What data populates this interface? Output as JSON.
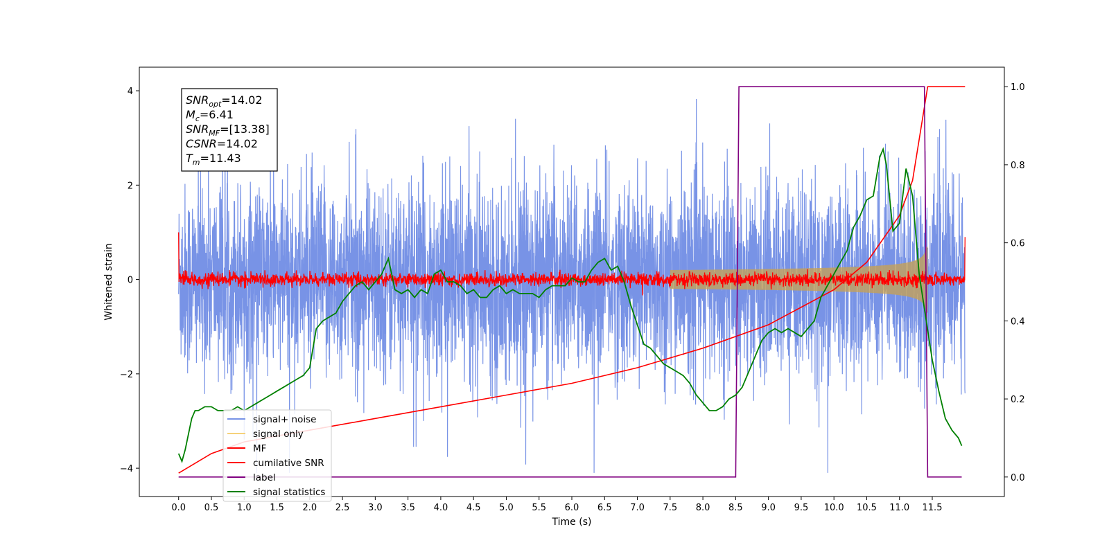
{
  "chart_data": {
    "type": "line",
    "xlabel": "Time (s)",
    "ylabel_left": "Whitened strain",
    "ylabel_right": "",
    "xlim": [
      -0.6,
      12.6
    ],
    "ylim_left": [
      -4.6,
      4.5
    ],
    "ylim_right": [
      -0.05,
      1.05
    ],
    "x_ticks": [
      0.0,
      0.5,
      1.0,
      1.5,
      2.0,
      2.5,
      3.0,
      3.5,
      4.0,
      4.5,
      5.0,
      5.5,
      6.0,
      6.5,
      7.0,
      7.5,
      8.0,
      8.5,
      9.0,
      9.5,
      10.0,
      10.5,
      11.0,
      11.5
    ],
    "x_tick_labels": [
      "0.0",
      "0.5",
      "1.0",
      "1.5",
      "2.0",
      "2.5",
      "3.0",
      "3.5",
      "4.0",
      "4.5",
      "5.0",
      "5.5",
      "6.0",
      "6.5",
      "7.0",
      "7.5",
      "8.0",
      "8.5",
      "9.0",
      "9.5",
      "10.0",
      "10.5",
      "11.0",
      "11.5"
    ],
    "y_ticks_left": [
      -4,
      -2,
      0,
      2,
      4
    ],
    "y_tick_labels_left": [
      "−4",
      "−2",
      "0",
      "2",
      "4"
    ],
    "y_ticks_right": [
      0.0,
      0.2,
      0.4,
      0.6,
      0.8,
      1.0
    ],
    "y_tick_labels_right": [
      "0.0",
      "0.2",
      "0.4",
      "0.6",
      "0.8",
      "1.0"
    ],
    "grid": false,
    "legend_position": "lower-left",
    "annotation": {
      "lines": [
        {
          "base": "SNR",
          "sub": "opt",
          "value": "=14.02"
        },
        {
          "base": "M",
          "sub": "c",
          "value": "=6.41"
        },
        {
          "base": "SNR",
          "sub": "MF",
          "value": "=[13.38]"
        },
        {
          "base": "CSNR",
          "sub": "",
          "value": "=14.02"
        },
        {
          "base": "T",
          "sub": "m",
          "value": "=11.43"
        }
      ]
    },
    "series": [
      {
        "name": "signal+ noise",
        "axis": "left",
        "color": "#7893e6",
        "kind": "noise",
        "x_range": [
          0.0,
          12.0
        ],
        "amplitude_typical": 1.6,
        "amplitude_peak": 4.1
      },
      {
        "name": "signal only",
        "axis": "left",
        "color": "#f5d27a",
        "kind": "chirp",
        "x_start": 7.5,
        "merger_time": 11.43,
        "amplitude_at_merger": 0.75
      },
      {
        "name": "MF",
        "axis": "left",
        "color": "#ff0000",
        "kind": "noise",
        "x_range": [
          0.0,
          12.0
        ],
        "amplitude_typical": 0.1
      },
      {
        "name": "cumilative SNR",
        "axis": "right",
        "color": "#ff0000",
        "x": [
          0.0,
          0.5,
          1.0,
          2.0,
          3.0,
          4.0,
          5.0,
          6.0,
          7.0,
          8.0,
          9.0,
          10.0,
          10.5,
          11.0,
          11.2,
          11.43,
          11.5,
          12.0
        ],
        "y": [
          0.01,
          0.06,
          0.09,
          0.12,
          0.15,
          0.18,
          0.21,
          0.24,
          0.28,
          0.33,
          0.39,
          0.48,
          0.55,
          0.67,
          0.76,
          1.0,
          1.0,
          1.0
        ]
      },
      {
        "name": "label",
        "axis": "right",
        "color": "#800080",
        "x": [
          0.0,
          8.5,
          8.55,
          11.38,
          11.43,
          11.95
        ],
        "y": [
          0.0,
          0.0,
          1.0,
          1.0,
          0.0,
          0.0
        ]
      },
      {
        "name": "signal statistics",
        "axis": "right",
        "color": "#008000",
        "x": [
          0.0,
          0.05,
          0.1,
          0.15,
          0.2,
          0.25,
          0.3,
          0.4,
          0.5,
          0.6,
          0.7,
          0.8,
          0.9,
          1.0,
          1.1,
          1.2,
          1.3,
          1.4,
          1.5,
          1.6,
          1.7,
          1.8,
          1.9,
          2.0,
          2.1,
          2.2,
          2.3,
          2.4,
          2.5,
          2.6,
          2.7,
          2.8,
          2.9,
          3.0,
          3.1,
          3.2,
          3.3,
          3.4,
          3.5,
          3.6,
          3.7,
          3.8,
          3.9,
          4.0,
          4.1,
          4.2,
          4.3,
          4.4,
          4.5,
          4.6,
          4.7,
          4.8,
          4.9,
          5.0,
          5.1,
          5.2,
          5.3,
          5.4,
          5.5,
          5.6,
          5.7,
          5.8,
          5.9,
          6.0,
          6.1,
          6.2,
          6.3,
          6.4,
          6.5,
          6.6,
          6.7,
          6.8,
          6.9,
          7.0,
          7.1,
          7.2,
          7.3,
          7.4,
          7.5,
          7.6,
          7.7,
          7.8,
          7.9,
          8.0,
          8.1,
          8.2,
          8.3,
          8.4,
          8.5,
          8.6,
          8.7,
          8.8,
          8.9,
          9.0,
          9.1,
          9.2,
          9.3,
          9.4,
          9.5,
          9.6,
          9.7,
          9.8,
          9.9,
          10.0,
          10.1,
          10.2,
          10.3,
          10.4,
          10.5,
          10.6,
          10.7,
          10.75,
          10.8,
          10.9,
          11.0,
          11.1,
          11.2,
          11.3,
          11.4,
          11.5,
          11.6,
          11.7,
          11.8,
          11.9,
          11.95
        ],
        "y": [
          0.06,
          0.04,
          0.07,
          0.11,
          0.15,
          0.17,
          0.17,
          0.18,
          0.18,
          0.17,
          0.17,
          0.17,
          0.18,
          0.17,
          0.18,
          0.19,
          0.2,
          0.21,
          0.22,
          0.23,
          0.24,
          0.25,
          0.26,
          0.28,
          0.38,
          0.4,
          0.41,
          0.42,
          0.45,
          0.47,
          0.49,
          0.5,
          0.48,
          0.5,
          0.52,
          0.56,
          0.48,
          0.47,
          0.48,
          0.46,
          0.48,
          0.47,
          0.52,
          0.53,
          0.5,
          0.5,
          0.49,
          0.47,
          0.48,
          0.46,
          0.46,
          0.48,
          0.49,
          0.47,
          0.48,
          0.47,
          0.47,
          0.47,
          0.46,
          0.48,
          0.49,
          0.49,
          0.49,
          0.51,
          0.5,
          0.5,
          0.53,
          0.55,
          0.56,
          0.53,
          0.54,
          0.5,
          0.44,
          0.39,
          0.34,
          0.33,
          0.31,
          0.29,
          0.28,
          0.27,
          0.26,
          0.24,
          0.21,
          0.19,
          0.17,
          0.17,
          0.18,
          0.2,
          0.21,
          0.23,
          0.27,
          0.31,
          0.35,
          0.37,
          0.38,
          0.37,
          0.38,
          0.37,
          0.36,
          0.38,
          0.4,
          0.46,
          0.49,
          0.52,
          0.55,
          0.58,
          0.64,
          0.67,
          0.71,
          0.72,
          0.82,
          0.84,
          0.8,
          0.63,
          0.65,
          0.79,
          0.72,
          0.52,
          0.41,
          0.3,
          0.22,
          0.15,
          0.12,
          0.1,
          0.08
        ]
      }
    ]
  }
}
